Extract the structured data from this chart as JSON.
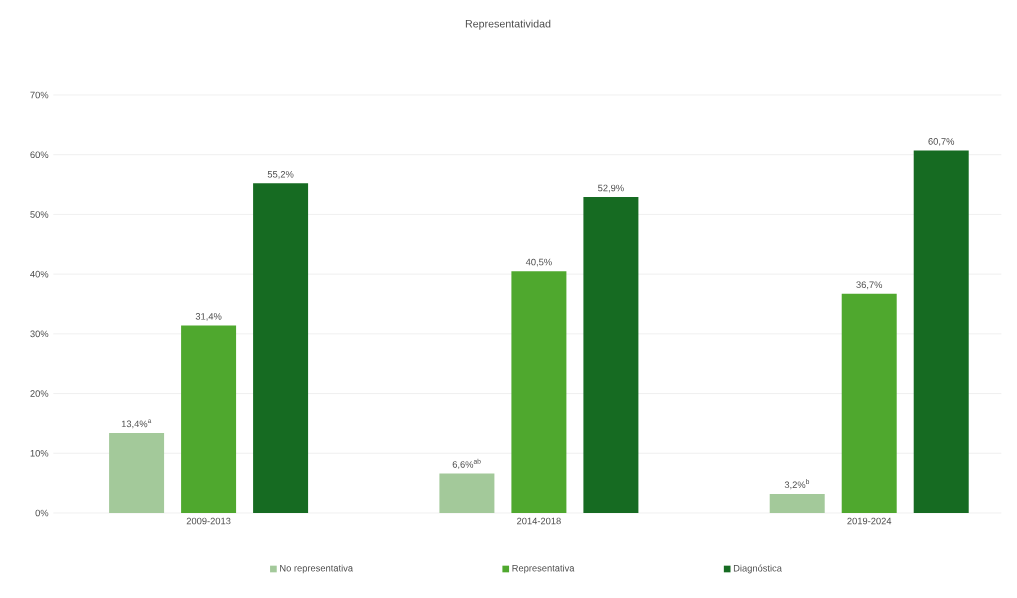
{
  "chart_data": {
    "type": "bar",
    "title": "Representatividad",
    "categories": [
      "2009-2013",
      "2014-2018",
      "2019-2024"
    ],
    "series": [
      {
        "name": "No representativa",
        "color": "#a3c99a",
        "values": [
          13.4,
          6.6,
          3.2
        ],
        "value_labels": [
          "13,4%$^{a}$",
          "6,6%$^{ab}$",
          "3,2%$^{b}$"
        ]
      },
      {
        "name": "Representativa",
        "color": "#4fa82e",
        "values": [
          31.4,
          40.5,
          36.7
        ],
        "value_labels": [
          "31,4%",
          "40,5%",
          "36,7%"
        ]
      },
      {
        "name": "Diagnóstica",
        "color": "#166b22",
        "values": [
          55.2,
          52.9,
          60.7
        ],
        "value_labels": [
          "55,2%",
          "52,9%",
          "60,7%"
        ]
      }
    ],
    "ylim": [
      0,
      70
    ],
    "yticks": [
      {
        "value": 0,
        "label": "0%"
      },
      {
        "value": 10,
        "label": "10%"
      },
      {
        "value": 20,
        "label": "20%"
      },
      {
        "value": 30,
        "label": "30%"
      },
      {
        "value": 40,
        "label": "40%"
      },
      {
        "value": 50,
        "label": "50%"
      },
      {
        "value": 60,
        "label": "60%"
      },
      {
        "value": 70,
        "label": "70%"
      }
    ],
    "grid": "y",
    "legend": "bottom"
  }
}
